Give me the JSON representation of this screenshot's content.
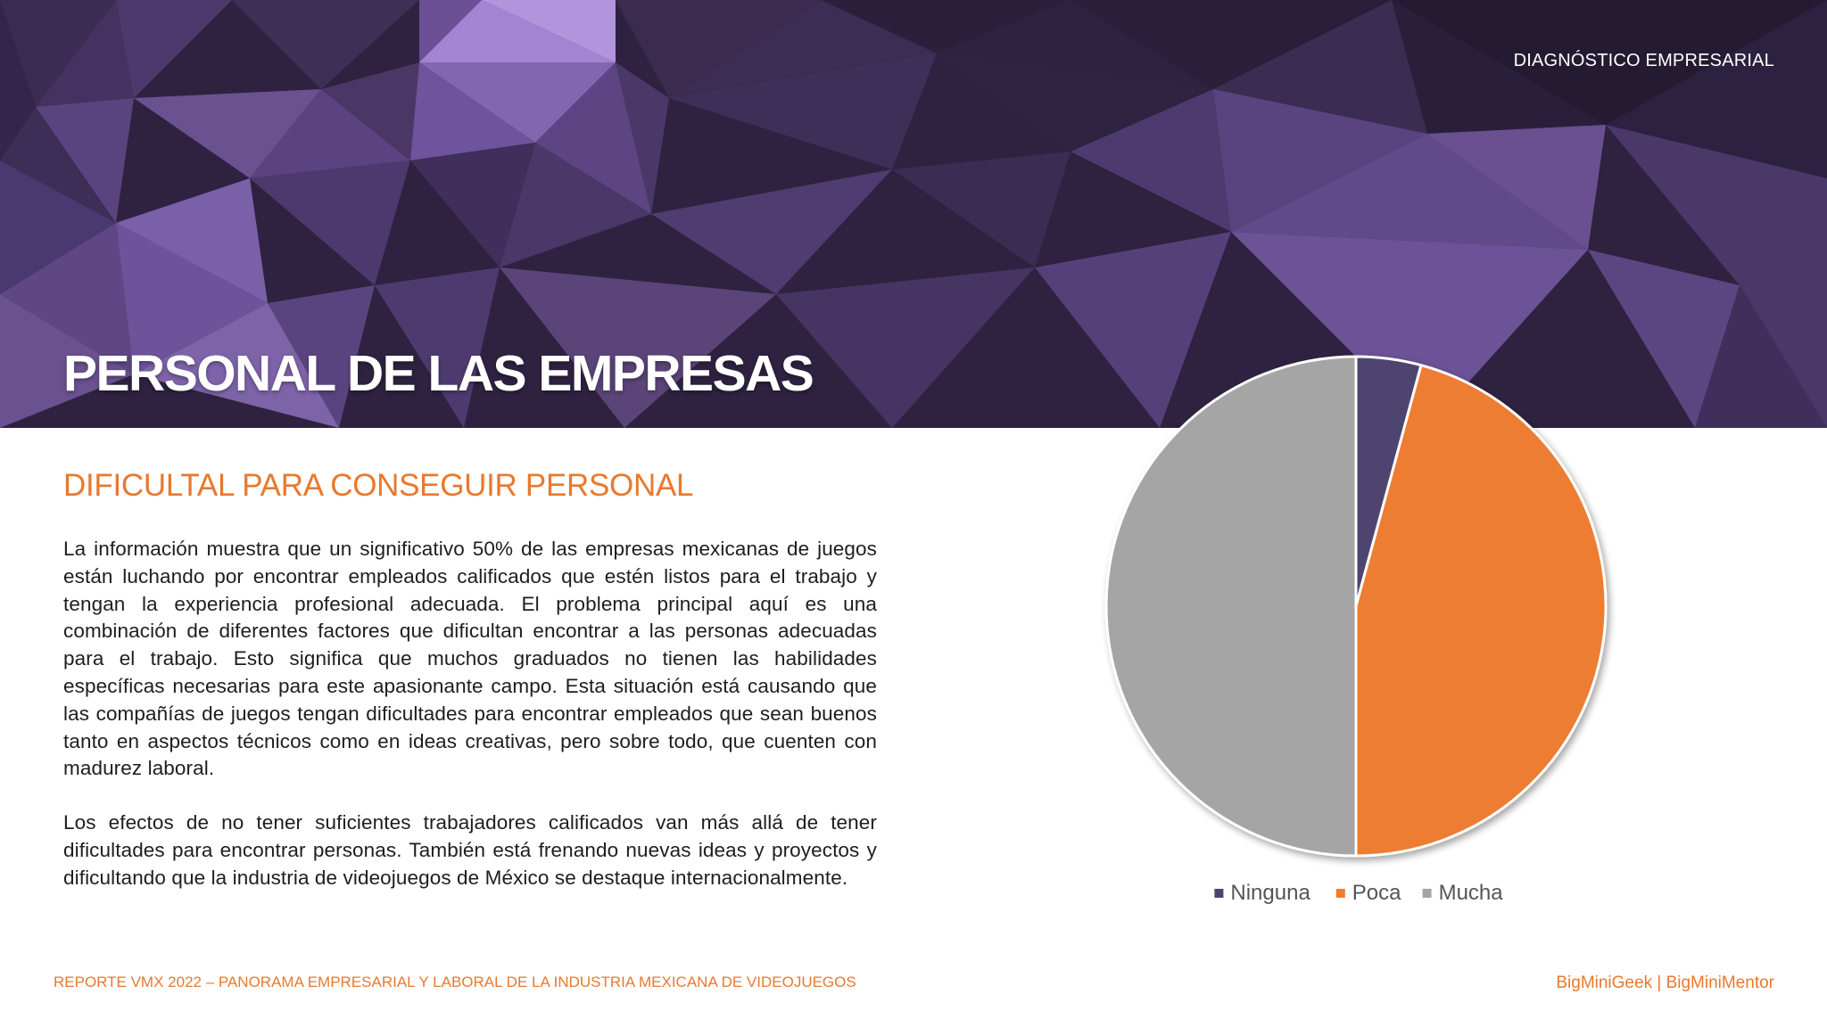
{
  "header": {
    "section_label": "DIAGNÓSTICO EMPRESARIAL",
    "title": "PERSONAL DE LAS EMPRESAS"
  },
  "content": {
    "subtitle": "DIFICULTAL PARA CONSEGUIR PERSONAL",
    "paragraphs": [
      "La información muestra que un significativo 50% de las empresas mexicanas de juegos están luchando por encontrar empleados calificados que estén listos para el trabajo y tengan la experiencia profesional adecuada. El problema principal aquí es una combinación de diferentes factores que dificultan encontrar a las personas adecuadas para el trabajo. Esto significa que muchos graduados no tienen las habilidades específicas necesarias para este apasionante campo. Esta situación está causando que las compañías de juegos tengan dificultades para encontrar empleados que sean buenos tanto en aspectos técnicos como en ideas creativas, pero sobre todo, que cuenten con madurez laboral.",
      "Los efectos de no tener suficientes trabajadores calificados van más allá de tener dificultades para encontrar personas. También está frenando nuevas ideas y proyectos y dificultando que la industria de videojuegos de México se destaque internacionalmente."
    ]
  },
  "chart_data": {
    "type": "pie",
    "categories": [
      "Ninguna",
      "Poca",
      "Mucha"
    ],
    "values": [
      4.2,
      45.8,
      50
    ],
    "colors": [
      "#4e4470",
      "#ed7d31",
      "#a5a5a5"
    ],
    "legend_position": "bottom"
  },
  "footer": {
    "left": "REPORTE VMX 2022 – PANORAMA EMPRESARIAL Y LABORAL DE LA INDUSTRIA MEXICANA DE VIDEOJUEGOS",
    "right": "BigMiniGeek  |  BigMiniMentor"
  }
}
